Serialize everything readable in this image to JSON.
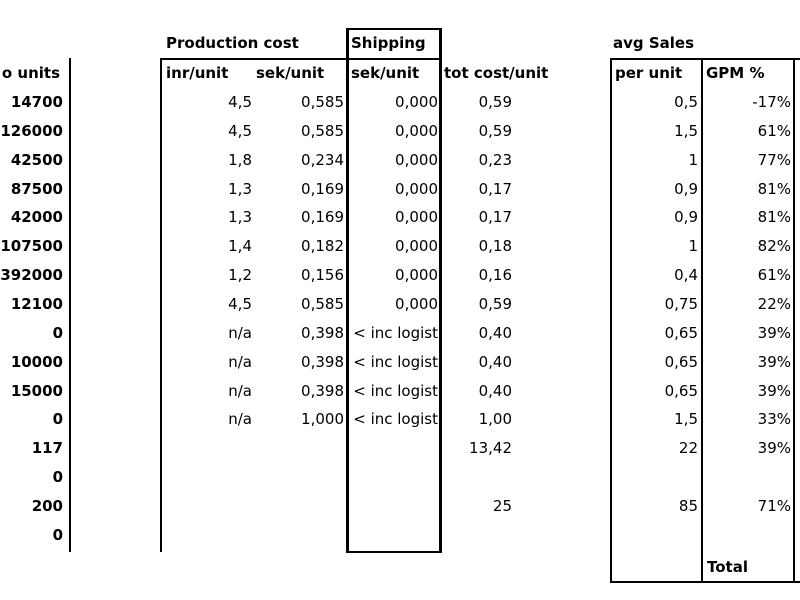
{
  "headers": {
    "production_cost": "Production cost",
    "shipping": "Shipping",
    "avg_sales": "avg Sales",
    "no_units": "o units",
    "inr_unit": "inr/unit",
    "sek_unit": "sek/unit",
    "ship_sek_unit": "sek/unit",
    "tot_cost_unit": "tot cost/unit",
    "per_unit": "per unit",
    "gpm": "GPM %"
  },
  "rows": [
    {
      "units": "14700",
      "inr": "4,5",
      "sek": "0,585",
      "ship": "0,000",
      "tot": "0,59",
      "per_unit": "0,5",
      "gpm": "-17%"
    },
    {
      "units": "126000",
      "inr": "4,5",
      "sek": "0,585",
      "ship": "0,000",
      "tot": "0,59",
      "per_unit": "1,5",
      "gpm": "61%"
    },
    {
      "units": "42500",
      "inr": "1,8",
      "sek": "0,234",
      "ship": "0,000",
      "tot": "0,23",
      "per_unit": "1",
      "gpm": "77%"
    },
    {
      "units": "87500",
      "inr": "1,3",
      "sek": "0,169",
      "ship": "0,000",
      "tot": "0,17",
      "per_unit": "0,9",
      "gpm": "81%"
    },
    {
      "units": "42000",
      "inr": "1,3",
      "sek": "0,169",
      "ship": "0,000",
      "tot": "0,17",
      "per_unit": "0,9",
      "gpm": "81%"
    },
    {
      "units": "107500",
      "inr": "1,4",
      "sek": "0,182",
      "ship": "0,000",
      "tot": "0,18",
      "per_unit": "1",
      "gpm": "82%"
    },
    {
      "units": "392000",
      "inr": "1,2",
      "sek": "0,156",
      "ship": "0,000",
      "tot": "0,16",
      "per_unit": "0,4",
      "gpm": "61%"
    },
    {
      "units": "12100",
      "inr": "4,5",
      "sek": "0,585",
      "ship": "0,000",
      "tot": "0,59",
      "per_unit": "0,75",
      "gpm": "22%"
    },
    {
      "units": "0",
      "inr": "n/a",
      "sek": "0,398",
      "ship": "< inc logist",
      "tot": "0,40",
      "per_unit": "0,65",
      "gpm": "39%"
    },
    {
      "units": "10000",
      "inr": "n/a",
      "sek": "0,398",
      "ship": "< inc logist",
      "tot": "0,40",
      "per_unit": "0,65",
      "gpm": "39%"
    },
    {
      "units": "15000",
      "inr": "n/a",
      "sek": "0,398",
      "ship": "< inc logist",
      "tot": "0,40",
      "per_unit": "0,65",
      "gpm": "39%"
    },
    {
      "units": "0",
      "inr": "n/a",
      "sek": "1,000",
      "ship": "< inc logist",
      "tot": "1,00",
      "per_unit": "1,5",
      "gpm": "33%"
    },
    {
      "units": "117",
      "inr": "",
      "sek": "",
      "ship": "",
      "tot": "13,42",
      "per_unit": "22",
      "gpm": "39%"
    },
    {
      "units": "0",
      "inr": "",
      "sek": "",
      "ship": "",
      "tot": "",
      "per_unit": "",
      "gpm": ""
    },
    {
      "units": "200",
      "inr": "",
      "sek": "",
      "ship": "",
      "tot": "25",
      "per_unit": "85",
      "gpm": "71%"
    },
    {
      "units": "0",
      "inr": "",
      "sek": "",
      "ship": "",
      "tot": "",
      "per_unit": "",
      "gpm": ""
    }
  ],
  "footer": {
    "total": "Total"
  }
}
